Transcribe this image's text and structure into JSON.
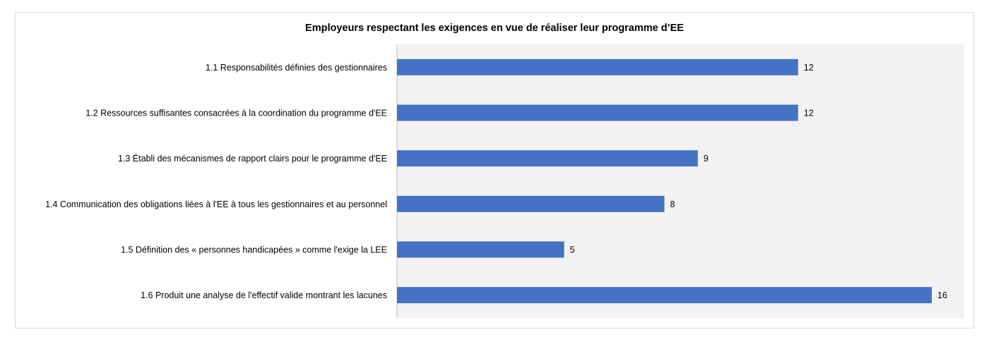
{
  "chart_data": {
    "type": "bar",
    "orientation": "horizontal",
    "title": "Employeurs respectant les exigences en vue de réaliser leur programme d’EE",
    "categories": [
      "1.1 Responsabilités définies des gestionnaires",
      "1.2 Ressources suffisantes consacrées à la coordination du programme d'EE",
      "1.3 Établi des mécanismes de rapport clairs pour le programme d'EE",
      "1.4 Communication des obligations liées à l'EE à tous les gestionnaires et au personnel",
      "1.5 Définition des « personnes handicapées » comme l'exige la LEE",
      "1.6 Produit une analyse de l'effectif valide montrant les lacunes"
    ],
    "values": [
      12,
      12,
      9,
      8,
      5,
      16
    ],
    "data_labels": [
      "12",
      "12",
      "9",
      "8",
      "5",
      "16"
    ],
    "xlim": [
      0,
      17
    ],
    "grid": false,
    "legend": "none",
    "colors": {
      "bar": "#4472c4",
      "plot_background": "#f2f2f2",
      "axis": "#bfbfbf",
      "border": "#d9d9d9"
    }
  }
}
